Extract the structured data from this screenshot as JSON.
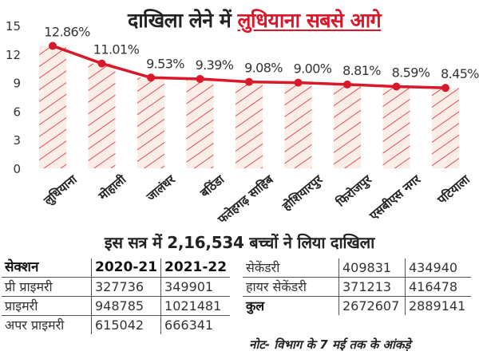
{
  "headline": {
    "part1": "दाखिला लेने में",
    "part2": "लुधियाना सबसे आगे"
  },
  "chart_data": {
    "type": "bar",
    "categories": [
      "लुधियाना",
      "मोहाली",
      "जालंधर",
      "बठिंडा",
      "फतेहगढ़ साहिब",
      "होशियारपुर",
      "फिरोजपुर",
      "एसबीएस नगर",
      "पटियाला"
    ],
    "values": [
      12.86,
      11.01,
      9.53,
      9.39,
      9.08,
      9.0,
      8.81,
      8.59,
      8.45
    ],
    "value_labels": [
      "12.86%",
      "11.01%",
      "9.53%",
      "9.39%",
      "9.08%",
      "9.00%",
      "8.81%",
      "8.59%",
      "8.45%"
    ],
    "yticks": [
      "0",
      "3",
      "6",
      "9",
      "12",
      "15"
    ],
    "ylim": [
      0,
      15
    ],
    "line_overlay": true,
    "colors": {
      "bar_fill": "#fbeee6",
      "bar_hatch": "#d9263a",
      "line": "#d9182a"
    }
  },
  "subheadline": "इस सत्र में 2,16,534 बच्चों ने लिया दाखिला",
  "table_left": {
    "header": [
      "सेक्शन",
      "2020-21",
      "2021-22"
    ],
    "rows": [
      [
        "प्री प्राइमरी",
        "327736",
        "349901"
      ],
      [
        "प्राइमरी",
        "948785",
        "1021481"
      ],
      [
        "अपर प्राइमरी",
        "615042",
        "666341"
      ]
    ]
  },
  "table_right": {
    "rows": [
      [
        "सेकेंडरी",
        "409831",
        "434940"
      ],
      [
        "हायर सेकेंडरी",
        "371213",
        "416478"
      ],
      [
        "कुल",
        "2672607",
        "2889141"
      ]
    ]
  },
  "note": "नोट- विभाग के 7 मई तक के आंकड़े"
}
